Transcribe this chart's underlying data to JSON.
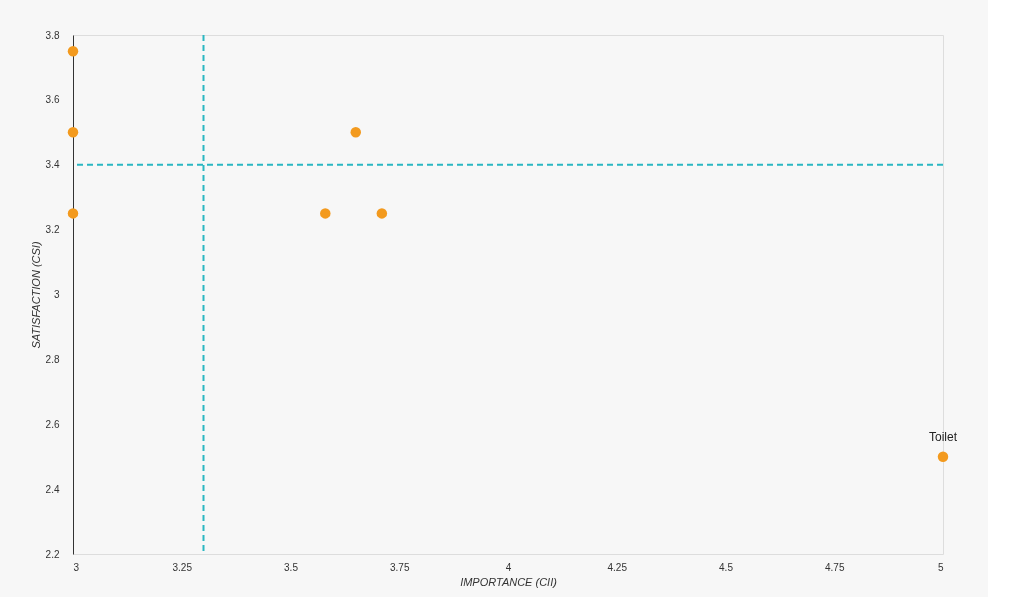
{
  "chart_data": {
    "type": "scatter",
    "xlabel": "IMPORTANCE (CII)",
    "ylabel": "SATISFACTION (CSI)",
    "x": [
      3,
      3,
      3,
      3.65,
      3.58,
      3.71,
      5
    ],
    "series": [
      {
        "color": "#f39a1e",
        "values": [
          3.75,
          3.5,
          3.25,
          3.5,
          3.25,
          3.25,
          2.5
        ]
      }
    ],
    "xlim": [
      3,
      5
    ],
    "xticks": [
      3,
      3.25,
      3.5,
      3.75,
      4,
      4.25,
      4.5,
      4.75,
      5
    ],
    "ylim": [
      2.2,
      3.8
    ],
    "yticks": [
      2.2,
      2.4,
      2.6,
      2.8,
      3,
      3.2,
      3.4,
      3.6,
      3.8
    ],
    "ref_lines": [
      {
        "axis": "x",
        "value": 3.3,
        "color": "#2ab7c2",
        "line_style": "dashed"
      },
      {
        "axis": "y",
        "value": 3.4,
        "color": "#2ab7c2",
        "line_style": "dashed"
      }
    ],
    "annotations": [
      {
        "text": "Toilet",
        "x": 5,
        "y": 2.5
      }
    ],
    "marker": "circle",
    "grid": false
  }
}
